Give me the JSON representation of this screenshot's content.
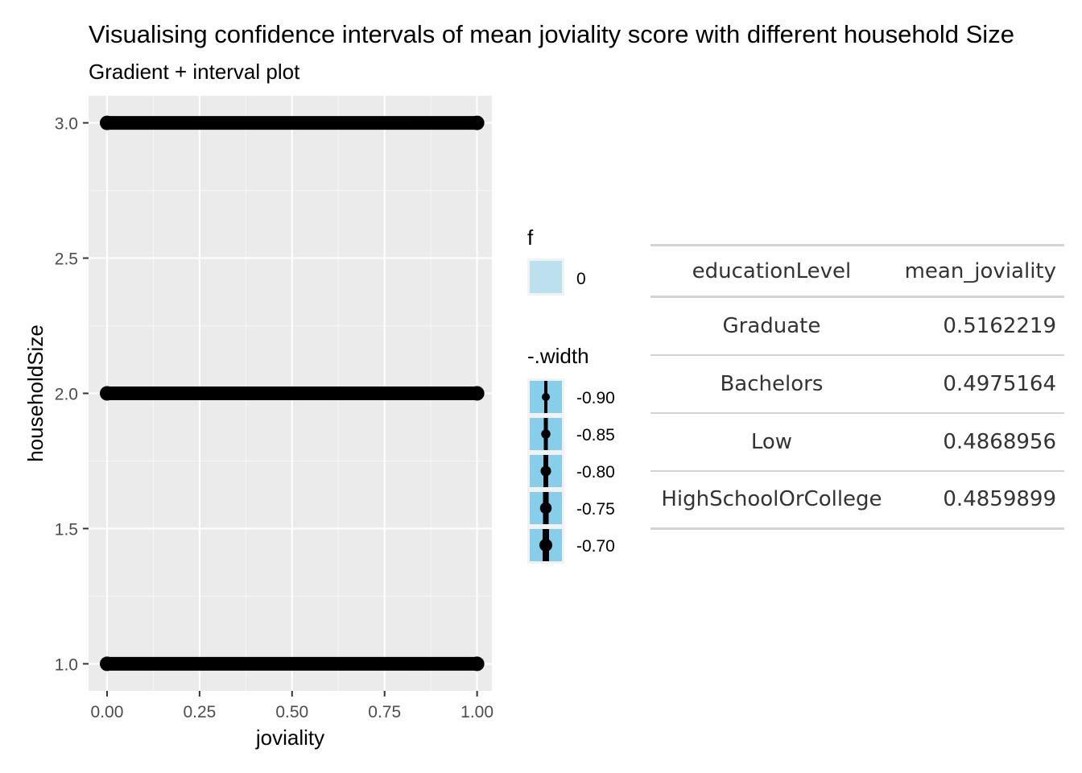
{
  "chart_data": {
    "type": "interval",
    "title": "Visualising confidence intervals of mean joviality score with different household Size",
    "subtitle": "Gradient + interval plot",
    "xlabel": "joviality",
    "ylabel": "householdSize",
    "xlim": [
      -0.05,
      1.04
    ],
    "ylim": [
      0.9,
      3.1
    ],
    "x_ticks": [
      0.0,
      0.25,
      0.5,
      0.75,
      1.0
    ],
    "x_tick_labels": [
      "0.00",
      "0.25",
      "0.50",
      "0.75",
      "1.00"
    ],
    "y_ticks": [
      1.0,
      1.5,
      2.0,
      2.5,
      3.0
    ],
    "y_tick_labels": [
      "1.0",
      "1.5",
      "2.0",
      "2.5",
      "3.0"
    ],
    "intervals": [
      {
        "householdSize": 1.0,
        "x_start": 0.0,
        "x_end": 1.0
      },
      {
        "householdSize": 2.0,
        "x_start": 0.0,
        "x_end": 1.0
      },
      {
        "householdSize": 3.0,
        "x_start": 0.0,
        "x_end": 1.0
      }
    ],
    "legend": {
      "fill": {
        "title": "f",
        "items": [
          {
            "label": "0",
            "color": "#bde0ef"
          }
        ]
      },
      "width": {
        "title": "-.width",
        "items": [
          {
            "label": "-0.90",
            "value": -0.9
          },
          {
            "label": "-0.85",
            "value": -0.85
          },
          {
            "label": "-0.80",
            "value": -0.8
          },
          {
            "label": "-0.75",
            "value": -0.75
          },
          {
            "label": "-0.70",
            "value": -0.7
          }
        ]
      }
    }
  },
  "colors": {
    "panel_bg": "#ebebeb",
    "grid_major": "#ffffff",
    "grid_minor": "#f5f5f5",
    "interval": "#000000",
    "legend_key": "#87ceeb",
    "tick_text": "#4d4d4d"
  },
  "table": {
    "headers": [
      "educationLevel",
      "mean_joviality"
    ],
    "rows": [
      [
        "Graduate",
        "0.5162219"
      ],
      [
        "Bachelors",
        "0.4975164"
      ],
      [
        "Low",
        "0.4868956"
      ],
      [
        "HighSchoolOrCollege",
        "0.4859899"
      ]
    ]
  }
}
